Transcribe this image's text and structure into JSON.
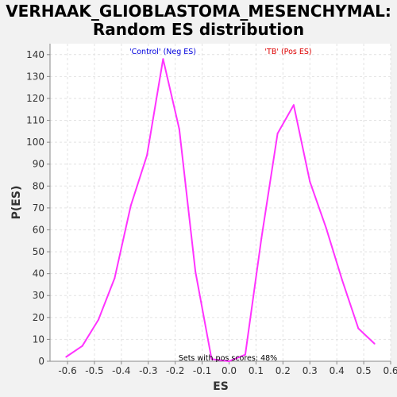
{
  "chart_data": {
    "type": "line",
    "title_line1": "VERHAAK_GLIOBLASTOMA_MESENCHYMAL:",
    "title_line2": "Random ES distribution",
    "xlabel": "ES",
    "ylabel": "P(ES)",
    "xlim": [
      -0.665,
      0.6
    ],
    "ylim": [
      0,
      145
    ],
    "xticks": [
      -0.6,
      -0.5,
      -0.4,
      -0.3,
      -0.2,
      -0.1,
      0.0,
      0.1,
      0.2,
      0.3,
      0.4,
      0.5,
      0.6
    ],
    "xtick_labels": [
      "-0.6",
      "-0.5",
      "-0.4",
      "-0.3",
      "-0.2",
      "-0.1",
      "0.0",
      "0.1",
      "0.2",
      "0.3",
      "0.4",
      "0.5",
      "0.6"
    ],
    "yticks": [
      0,
      10,
      20,
      30,
      40,
      50,
      60,
      70,
      80,
      90,
      100,
      110,
      120,
      130,
      140
    ],
    "grid": true,
    "series": [
      {
        "color": "#ff33ff",
        "x": [
          -0.605,
          -0.545,
          -0.485,
          -0.425,
          -0.365,
          -0.305,
          -0.245,
          -0.185,
          -0.125,
          -0.065,
          0.0,
          0.06,
          0.12,
          0.18,
          0.24,
          0.3,
          0.36,
          0.42,
          0.48,
          0.54
        ],
        "y": [
          2,
          7,
          19,
          38,
          71,
          94,
          138,
          106,
          41,
          1,
          0,
          3,
          56,
          104,
          117,
          82,
          61,
          37,
          15,
          8
        ]
      }
    ],
    "annotations": {
      "neg": {
        "text": "'Control' (Neg ES)",
        "color": "#0000dd"
      },
      "pos": {
        "text": "'TB' (Pos ES)",
        "color": "#dd0000"
      },
      "footer": {
        "text": "Sets with pos scores: 48%",
        "color": "#000000"
      }
    }
  }
}
